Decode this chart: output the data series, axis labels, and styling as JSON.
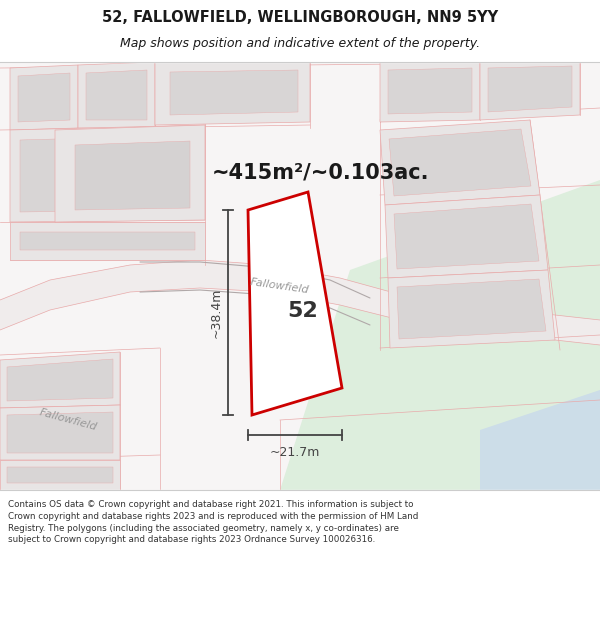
{
  "title_line1": "52, FALLOWFIELD, WELLINGBOROUGH, NN9 5YY",
  "title_line2": "Map shows position and indicative extent of the property.",
  "area_text": "~415m²/~0.103ac.",
  "number_label": "52",
  "street_label_road": "Fallowfield",
  "street_label_diagonal": "Fallowfield",
  "dim_horizontal": "~21.7m",
  "dim_vertical": "~38.4m",
  "footer_text": "Contains OS data © Crown copyright and database right 2021. This information is subject to Crown copyright and database rights 2023 and is reproduced with the permission of HM Land Registry. The polygons (including the associated geometry, namely x, y co-ordinates) are subject to Crown copyright and database rights 2023 Ordnance Survey 100026316.",
  "map_bg": "#f7f5f5",
  "plot_color": "#cc0000",
  "bld_fill": "#e8e5e5",
  "bld_inner": "#d8d5d5",
  "road_fill": "#f0ecec",
  "parcel_line": "#e8aaaa",
  "gray_line": "#aaaaaa",
  "green_fill": "#ddeedd",
  "blue_fill": "#ccdde8",
  "dim_color": "#444444",
  "text_color": "#222222",
  "label_gray": "#999999"
}
